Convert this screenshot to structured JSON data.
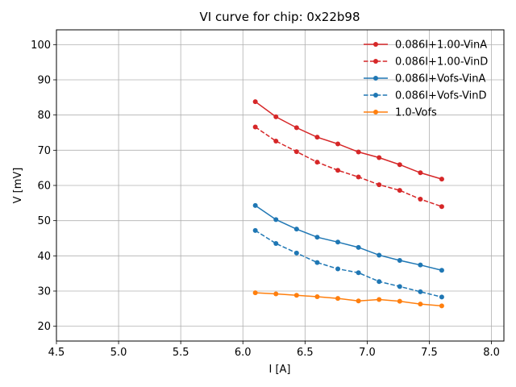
{
  "chart_data": {
    "type": "line",
    "title": "VI curve for chip: 0x22b98",
    "xlabel": "I [A]",
    "ylabel": "V [mV]",
    "xlim": [
      4.5,
      8.1
    ],
    "ylim": [
      15.8,
      104.2
    ],
    "xticks": [
      4.5,
      5.0,
      5.5,
      6.0,
      6.5,
      7.0,
      7.5,
      8.0
    ],
    "xtick_labels": [
      "4.5",
      "5.0",
      "5.5",
      "6.0",
      "6.5",
      "7.0",
      "7.5",
      "8.0"
    ],
    "yticks": [
      20,
      30,
      40,
      50,
      60,
      70,
      80,
      90,
      100
    ],
    "ytick_labels": [
      "20",
      "30",
      "40",
      "50",
      "60",
      "70",
      "80",
      "90",
      "100"
    ],
    "grid": true,
    "legend_position": "top-right",
    "x": [
      6.1,
      6.266,
      6.432,
      6.598,
      6.764,
      6.93,
      7.096,
      7.262,
      7.428,
      7.6
    ],
    "series": [
      {
        "name": "0.086I+1.00-VinA",
        "color": "#d62728",
        "style": "solid",
        "values": [
          83.8,
          79.5,
          76.4,
          73.7,
          71.8,
          69.5,
          67.9,
          65.9,
          63.6,
          61.8
        ]
      },
      {
        "name": "0.086I+1.00-VinD",
        "color": "#d62728",
        "style": "dashed",
        "values": [
          76.6,
          72.6,
          69.6,
          66.6,
          64.3,
          62.4,
          60.2,
          58.6,
          56.1,
          54.0
        ]
      },
      {
        "name": "0.086I+Vofs-VinA",
        "color": "#1f77b4",
        "style": "solid",
        "values": [
          54.3,
          50.3,
          47.6,
          45.3,
          43.9,
          42.4,
          40.2,
          38.7,
          37.4,
          35.9
        ]
      },
      {
        "name": "0.086I+Vofs-VinD",
        "color": "#1f77b4",
        "style": "dashed",
        "values": [
          47.2,
          43.5,
          40.8,
          38.1,
          36.3,
          35.2,
          32.7,
          31.3,
          29.8,
          28.3
        ]
      },
      {
        "name": "1.0-Vofs",
        "color": "#ff7f0e",
        "style": "solid",
        "values": [
          29.5,
          29.2,
          28.8,
          28.4,
          27.9,
          27.2,
          27.6,
          27.1,
          26.3,
          25.8
        ]
      }
    ]
  }
}
